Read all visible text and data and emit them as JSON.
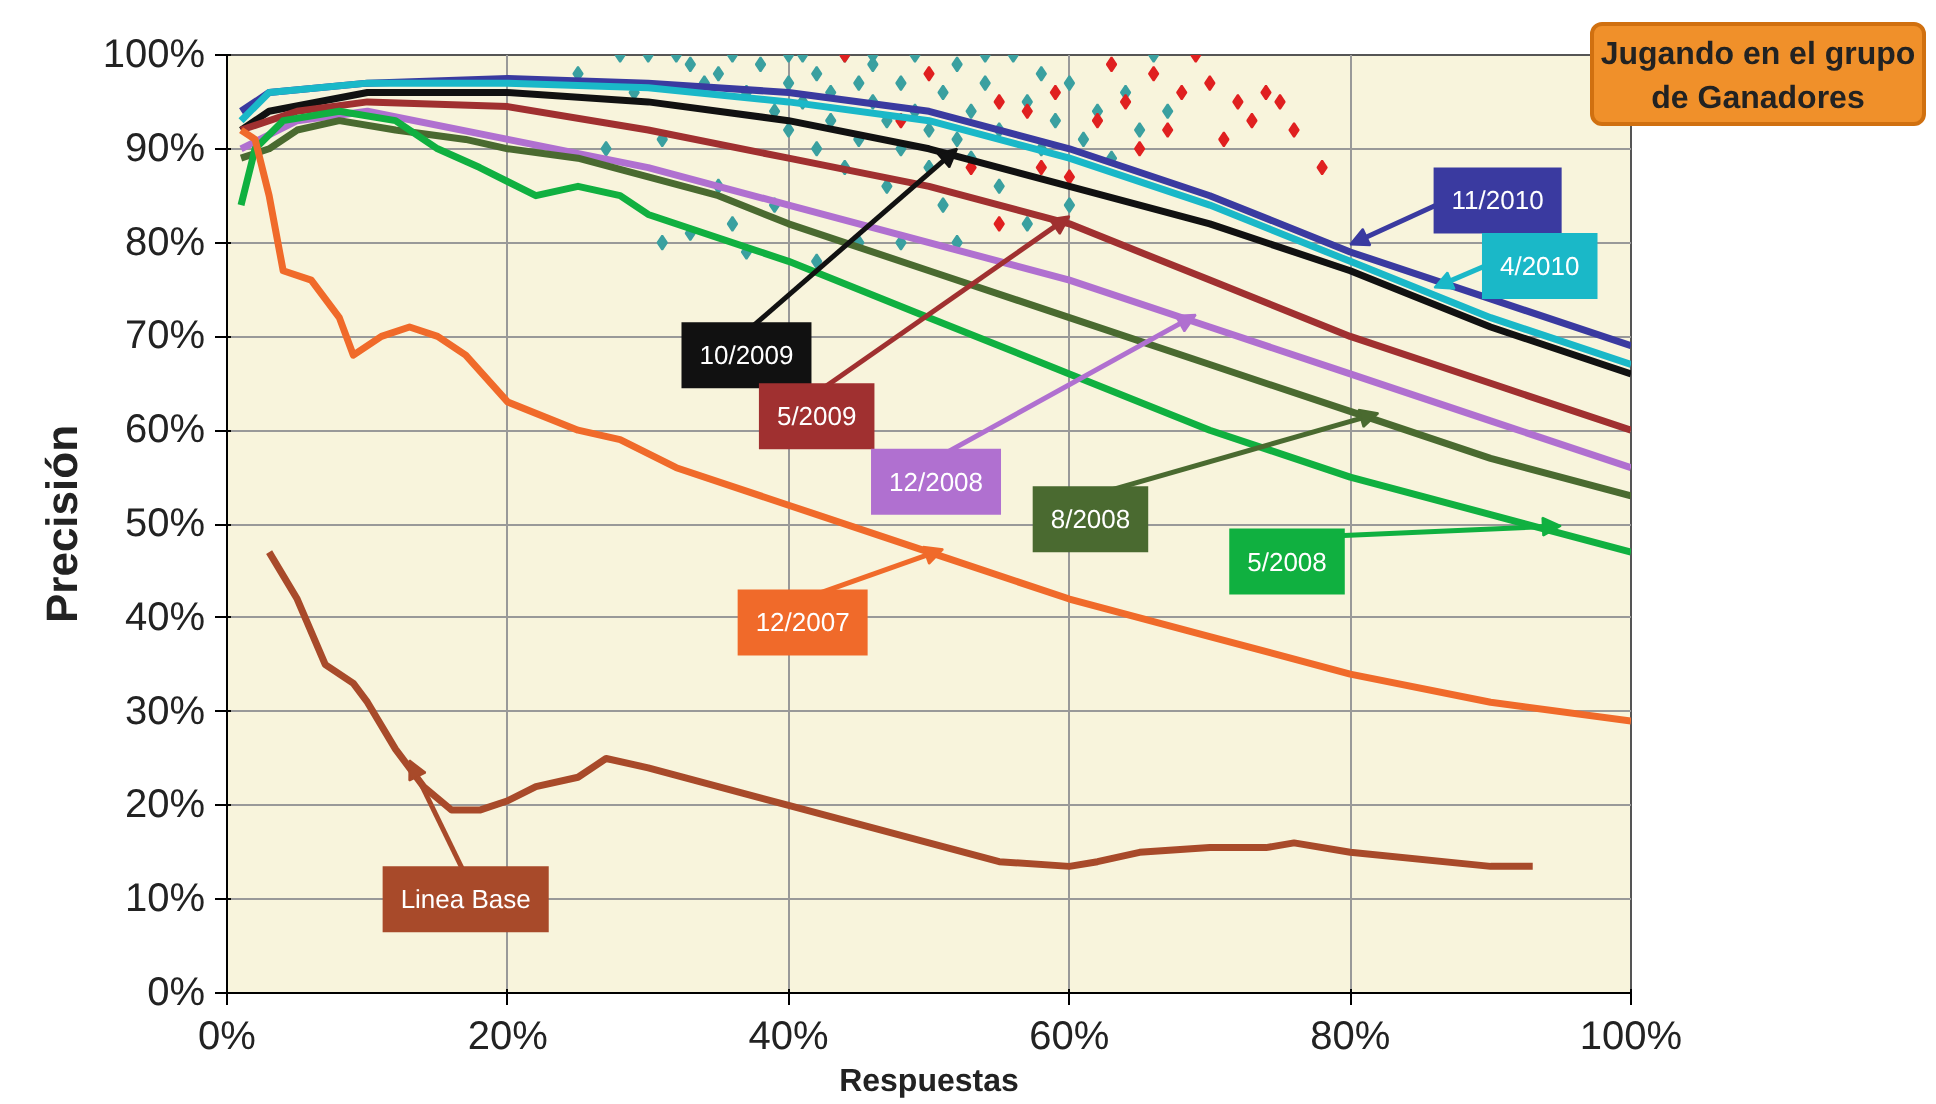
{
  "chart_data": {
    "type": "line",
    "xlabel": "Respuestas",
    "ylabel": "Precisión",
    "annotations": [
      "Jugando en el grupo de Ganadores"
    ],
    "xlim": [
      0,
      100
    ],
    "ylim": [
      0,
      100
    ],
    "xticks": [
      {
        "value": 0,
        "label": "0%"
      },
      {
        "value": 20,
        "label": "20%"
      },
      {
        "value": 40,
        "label": "40%"
      },
      {
        "value": 60,
        "label": "60%"
      },
      {
        "value": 80,
        "label": "80%"
      },
      {
        "value": 100,
        "label": "100%"
      }
    ],
    "yticks": [
      {
        "value": 0,
        "label": "0%"
      },
      {
        "value": 10,
        "label": "10%"
      },
      {
        "value": 20,
        "label": "20%"
      },
      {
        "value": 30,
        "label": "30%"
      },
      {
        "value": 40,
        "label": "40%"
      },
      {
        "value": 50,
        "label": "50%"
      },
      {
        "value": 60,
        "label": "60%"
      },
      {
        "value": 70,
        "label": "70%"
      },
      {
        "value": 80,
        "label": "80%"
      },
      {
        "value": 90,
        "label": "90%"
      },
      {
        "value": 100,
        "label": "100%"
      }
    ],
    "grid": true,
    "line_style": "solid",
    "series": [
      {
        "name": "11/2010",
        "color": "#3a3aa0",
        "x": [
          1,
          3,
          10,
          20,
          30,
          40,
          50,
          60,
          70,
          80,
          90,
          100
        ],
        "values": [
          94,
          96,
          97,
          97.5,
          97,
          96,
          94,
          90,
          85,
          79,
          74,
          69
        ]
      },
      {
        "name": "4/2010",
        "color": "#1ab8c8",
        "x": [
          1,
          3,
          10,
          20,
          30,
          40,
          50,
          60,
          70,
          80,
          90,
          100
        ],
        "values": [
          93,
          96,
          97,
          97,
          96.5,
          95,
          93,
          89,
          84,
          78,
          72,
          67
        ]
      },
      {
        "name": "10/2009",
        "color": "#111111",
        "x": [
          1,
          3,
          10,
          20,
          30,
          40,
          50,
          55,
          60,
          70,
          80,
          90,
          100
        ],
        "values": [
          92,
          94,
          96,
          96,
          95,
          93,
          90,
          88,
          86,
          82,
          77,
          71,
          66
        ]
      },
      {
        "name": "5/2009",
        "color": "#a03030",
        "x": [
          1,
          5,
          10,
          20,
          30,
          40,
          50,
          60,
          70,
          80,
          90,
          100
        ],
        "values": [
          92,
          94,
          95,
          94.5,
          92,
          89,
          86,
          82,
          76,
          70,
          65,
          60
        ]
      },
      {
        "name": "12/2008",
        "color": "#b070d0",
        "x": [
          1,
          5,
          10,
          20,
          30,
          40,
          50,
          60,
          70,
          80,
          90,
          100
        ],
        "values": [
          90,
          93,
          94,
          91,
          88,
          84,
          80,
          76,
          71,
          66,
          61,
          56
        ]
      },
      {
        "name": "8/2008",
        "color": "#4a6a30",
        "x": [
          1,
          3,
          5,
          8,
          12,
          17,
          20,
          25,
          30,
          35,
          40,
          50,
          60,
          70,
          80,
          90,
          100
        ],
        "values": [
          89,
          90,
          92,
          93,
          92,
          91,
          90,
          89,
          87,
          85,
          82,
          77,
          72,
          67,
          62,
          57,
          53
        ]
      },
      {
        "name": "5/2008",
        "color": "#10b040",
        "x": [
          1,
          2,
          4,
          8,
          12,
          15,
          18,
          22,
          25,
          28,
          30,
          40,
          50,
          60,
          70,
          80,
          90,
          100
        ],
        "values": [
          84,
          90,
          93,
          94,
          93,
          90,
          88,
          85,
          86,
          85,
          83,
          78,
          72,
          66,
          60,
          55,
          51,
          47
        ]
      },
      {
        "name": "12/2007",
        "color": "#f06a2a",
        "x": [
          1,
          2,
          3,
          4,
          6,
          8,
          9,
          11,
          13,
          15,
          17,
          20,
          25,
          28,
          32,
          40,
          50,
          60,
          70,
          80,
          90,
          100
        ],
        "values": [
          92,
          91,
          85,
          77,
          76,
          72,
          68,
          70,
          71,
          70,
          68,
          63,
          60,
          59,
          56,
          52,
          47,
          42,
          38,
          34,
          31,
          29
        ]
      },
      {
        "name": "Linea Base",
        "color": "#a84a2a",
        "x": [
          3,
          5,
          7,
          9,
          10,
          12,
          14,
          16,
          18,
          20,
          22,
          25,
          27,
          30,
          40,
          50,
          55,
          60,
          62,
          65,
          70,
          74,
          76,
          80,
          90,
          93
        ],
        "values": [
          47,
          42,
          35,
          33,
          31,
          26,
          22,
          19.5,
          19.5,
          20.5,
          22,
          23,
          25,
          24,
          20,
          16,
          14,
          13.5,
          14,
          15,
          15.5,
          15.5,
          16,
          15,
          13.5,
          13.5
        ]
      },
      {
        "type": "scatter",
        "marker": "diamond",
        "color": "#3aa0a0",
        "x": [
          25,
          28,
          30,
          32,
          33,
          34,
          35,
          36,
          37,
          38,
          39,
          40,
          40,
          41,
          41,
          42,
          42,
          43,
          43,
          44,
          44,
          45,
          45,
          46,
          46,
          47,
          47,
          48,
          48,
          49,
          49,
          50,
          50,
          51,
          51,
          52,
          52,
          53,
          53,
          54,
          55,
          55,
          56,
          57,
          58,
          59,
          60,
          61,
          62,
          63,
          64,
          65,
          66,
          67,
          39,
          36,
          37,
          33,
          31,
          45,
          42,
          48,
          52,
          57,
          60,
          35,
          31,
          27,
          29,
          40,
          46,
          54,
          58
        ],
        "values": [
          98,
          100,
          100,
          100,
          99,
          97,
          98,
          100,
          96,
          99,
          94,
          97,
          92,
          100,
          95,
          98,
          90,
          96,
          93,
          100,
          88,
          97,
          91,
          95,
          99,
          93,
          86,
          97,
          90,
          100,
          94,
          92,
          88,
          96,
          84,
          99,
          91,
          94,
          89,
          97,
          92,
          86,
          100,
          95,
          90,
          93,
          97,
          91,
          94,
          89,
          96,
          92,
          100,
          94,
          84,
          82,
          79,
          81,
          80,
          80,
          78,
          80,
          80,
          82,
          84,
          86,
          91,
          90,
          96,
          100,
          100,
          100,
          98
        ]
      },
      {
        "type": "scatter",
        "marker": "diamond",
        "color": "#e02020",
        "x": [
          44,
          48,
          50,
          53,
          55,
          57,
          59,
          60,
          62,
          63,
          64,
          65,
          66,
          67,
          68,
          69,
          70,
          71,
          72,
          73,
          74,
          75,
          76,
          78,
          55,
          58
        ],
        "values": [
          100,
          93,
          98,
          88,
          95,
          94,
          96,
          87,
          93,
          99,
          95,
          90,
          98,
          92,
          96,
          100,
          97,
          91,
          95,
          93,
          96,
          95,
          92,
          88,
          82,
          88
        ]
      }
    ]
  }
}
